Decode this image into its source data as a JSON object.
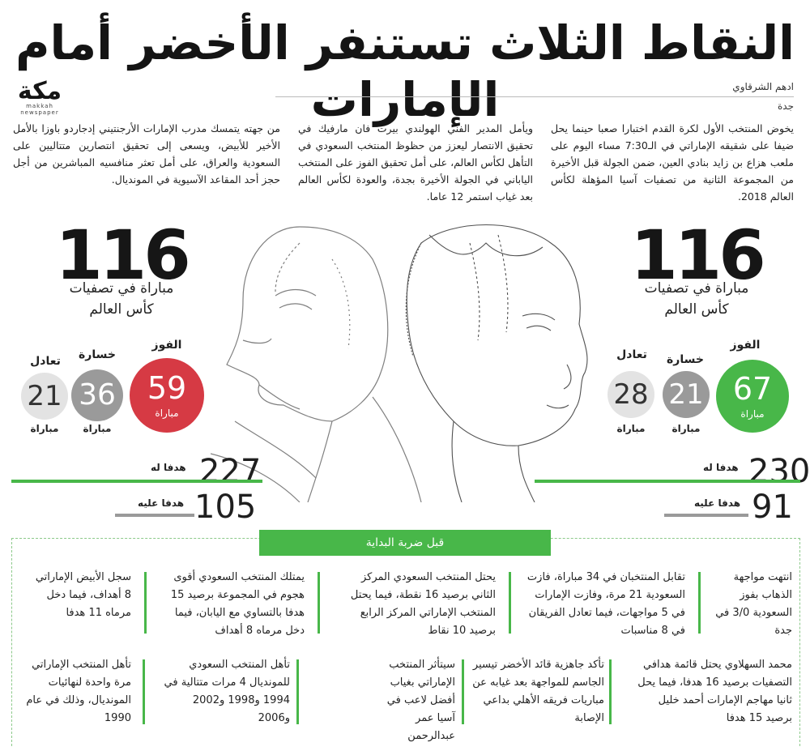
{
  "headline": "النقاط الثلاث تستنفر الأخضر أمام الإمارات",
  "logo": {
    "name": "مكة",
    "tagline": "makkah newspaper"
  },
  "byline": {
    "author": "ادهم الشرقاوي",
    "city": "جدة"
  },
  "intro": [
    "يخوض المنتخب الأول لكرة القدم اختبارا صعبا حينما يحل ضيفا على شقيقه الإماراتي في الـ7:30 مساء اليوم على ملعب هزاع بن زايد بنادي العين، ضمن الجولة قبل الأخيرة من المجموعة الثانية من تصفيات آسيا المؤهلة لكأس العالم 2018.",
    "ويأمل المدير الفني الهولندي بيرت فان مارفيك في تحقيق الانتصار ليعزز من حظوظ المنتخب السعودي في التأهل لكأس العالم، على أمل تحقيق الفوز على المنتخب الياباني في الجولة الأخيرة بجدة، والعودة لكأس العالم بعد غياب استمر 12 عاما.",
    "من جهته يتمسك مدرب الإمارات الأرجنتيني إدجاردو باوزا بالأمل الأخير للأبيض، ويسعى إلى تحقيق انتصارين متتاليين على السعودية والعراق، على أمل تعثر منافسيه المباشرين من أجل حجز أحد المقاعد الآسيوية في المونديال."
  ],
  "teams": {
    "saudi": {
      "matches_total": "116",
      "matches_caption_1": "مباراة في تصفيات",
      "matches_caption_2": "كأس العالم",
      "win": {
        "label": "الفوز",
        "value": "67",
        "unit": "مباراة"
      },
      "loss": {
        "label": "خسارة",
        "value": "21",
        "unit": "مباراة"
      },
      "draw": {
        "label": "تعادل",
        "value": "28",
        "unit": "مباراة"
      },
      "goals_for": {
        "label": "هدفا له",
        "value": "230"
      },
      "goals_against": {
        "label": "هدفا عليه",
        "value": "91"
      }
    },
    "uae": {
      "matches_total": "116",
      "matches_caption_1": "مباراة في تصفيات",
      "matches_caption_2": "كأس العالم",
      "win": {
        "label": "الفوز",
        "value": "59",
        "unit": "مباراة"
      },
      "loss": {
        "label": "خسارة",
        "value": "36",
        "unit": "مباراة"
      },
      "draw": {
        "label": "تعادل",
        "value": "21",
        "unit": "مباراة"
      },
      "goals_for": {
        "label": "هدفا له",
        "value": "227"
      },
      "goals_against": {
        "label": "هدفا عليه",
        "value": "105"
      }
    }
  },
  "facts_title": "قبل ضربة البداية",
  "facts": [
    "انتهت مواجهة الذهاب بفوز السعودية 3/0 في جدة",
    "تقابل المنتخبان في 34 مباراة، فازت السعودية 21 مرة، وفازت الإمارات في 5 مواجهات، فيما تعادل الفريقان في 8 مناسبات",
    "يحتل المنتخب السعودي المركز الثاني برصيد 16 نقطة، فيما يحتل المنتخب الإماراتي المركز الرابع برصيد 10 نقاط",
    "يمتلك المنتخب السعودي أقوى هجوم في المجموعة برصيد 15 هدفا بالتساوي مع اليابان، فيما دخل مرماه 8 أهداف",
    "سجل الأبيض الإماراتي 8 أهداف، فيما دخل مرماه 11 هدفا",
    "محمد السهلاوي يحتل قائمة هدافي التصفيات برصيد 16 هدفا، فيما يحل ثانيا مهاجم الإمارات أحمد خليل برصيد 15 هدفا",
    "تأكد جاهزية قائد الأخضر تيسير الجاسم للمواجهة بعد غيابه عن مباريات فريقه الأهلي بداعي الإصابة",
    "سيتأثر المنتخب الإماراتي بغياب أفضل لاعب في آسيا عمر عبدالرحمن",
    "تأهل المنتخب السعودي للمونديال 4 مرات متتالية في 1994 و1998 و2002 و2006",
    "تأهل المنتخب الإماراتي مرة واحدة لنهائيات المونديال، وذلك في عام 1990"
  ],
  "colors": {
    "green": "#48b749",
    "red": "#d63a44",
    "gray": "#9a9a9a",
    "light_gray": "#e3e3e3"
  }
}
